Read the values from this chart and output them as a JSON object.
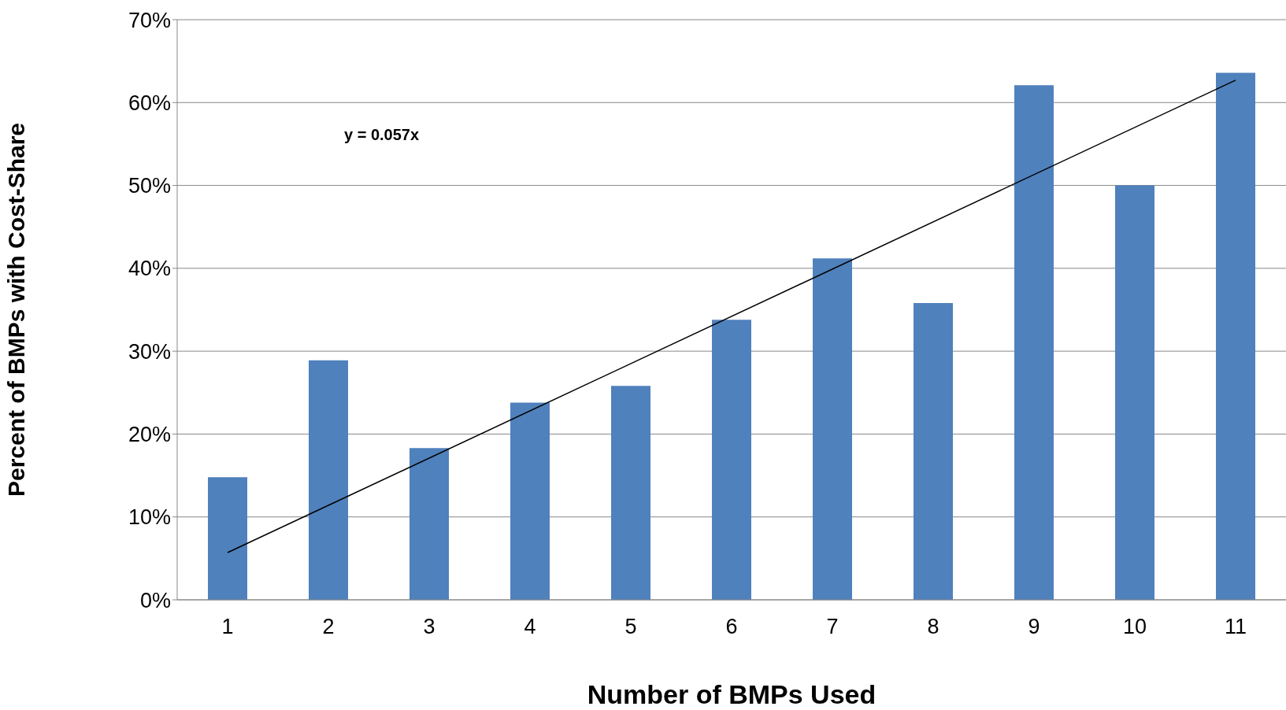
{
  "chart_data": {
    "type": "bar",
    "xlabel": "Number of BMPs Used",
    "ylabel": "Percent of BMPs with Cost-Share",
    "categories": [
      "1",
      "2",
      "3",
      "4",
      "5",
      "6",
      "7",
      "8",
      "9",
      "10",
      "11"
    ],
    "series": [
      {
        "color": "#4f81bd",
        "values": [
          14.8,
          28.9,
          18.3,
          23.8,
          25.8,
          33.8,
          41.2,
          35.8,
          62.1,
          50.0,
          63.6
        ]
      },
      {
        "type": "line",
        "color": "#000000",
        "x": [
          "1",
          "11"
        ],
        "values": [
          5.7,
          62.7
        ]
      }
    ],
    "ylim": [
      0,
      70
    ],
    "yticks": [
      {
        "value": 0,
        "label": "0%"
      },
      {
        "value": 10,
        "label": "10%"
      },
      {
        "value": 20,
        "label": "20%"
      },
      {
        "value": 30,
        "label": "30%"
      },
      {
        "value": 40,
        "label": "40%"
      },
      {
        "value": 50,
        "label": "50%"
      },
      {
        "value": 60,
        "label": "60%"
      },
      {
        "value": 70,
        "label": "70%"
      }
    ],
    "grid": "y",
    "annotations": [
      "y = 0.057x"
    ]
  }
}
